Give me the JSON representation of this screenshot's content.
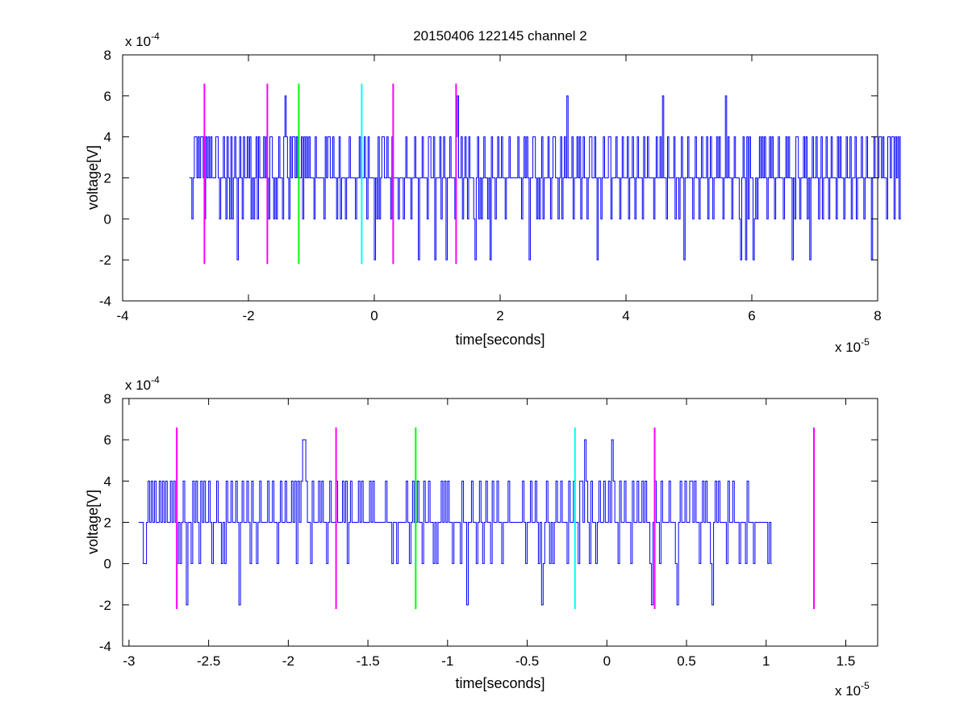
{
  "figure_title": "20150406 122145 channel 2",
  "colors": {
    "signal": "#0000ff",
    "magenta": "#ff00ff",
    "green": "#00ff00",
    "cyan": "#00ffff",
    "axis": "#000000"
  },
  "chart_data": [
    {
      "type": "line",
      "title": "20150406 122145 channel 2",
      "xlabel": "time[seconds]",
      "ylabel": "voltage[V]",
      "x_multiplier": "x 10",
      "x_exponent": "-5",
      "y_multiplier": "x 10",
      "y_exponent": "-4",
      "xlim": [
        -4,
        8
      ],
      "ylim": [
        -4,
        8
      ],
      "xticks": [
        -4,
        -2,
        0,
        2,
        4,
        6,
        8
      ],
      "xtick_labels": [
        "-4",
        "-2",
        "0",
        "2",
        "4",
        "6",
        "8"
      ],
      "yticks": [
        -4,
        -2,
        0,
        2,
        4,
        6,
        8
      ],
      "ytick_labels": [
        "-4",
        "-2",
        "0",
        "2",
        "4",
        "6",
        "8"
      ],
      "grid": false,
      "series": [
        {
          "color": "#0000ff",
          "x_start": -2.94,
          "x_step": 0.02,
          "values": [
            2,
            2,
            0,
            2,
            4,
            4,
            2,
            4,
            2,
            4,
            4,
            2,
            0,
            4,
            2,
            4,
            2,
            4,
            2,
            2,
            2,
            4,
            4,
            2,
            0,
            2,
            2,
            4,
            2,
            0,
            4,
            2,
            0,
            4,
            0,
            2,
            4,
            2,
            -2,
            2,
            4,
            2,
            0,
            4,
            2,
            2,
            4,
            2,
            4,
            0,
            2,
            0,
            2,
            4,
            0,
            4,
            2,
            2,
            2,
            4,
            2,
            4,
            2,
            0,
            4,
            4,
            2,
            0,
            2,
            0,
            2,
            4,
            2,
            2,
            0,
            4,
            6,
            4,
            2,
            0,
            4,
            2,
            4,
            4,
            2,
            4,
            2,
            2,
            2,
            4,
            0,
            4,
            2,
            4,
            2,
            4,
            2,
            2,
            2,
            0,
            4,
            2,
            2,
            2,
            2,
            2,
            2,
            0,
            4,
            2,
            4,
            4,
            2,
            2,
            4,
            2,
            2,
            0,
            2,
            4,
            0,
            2,
            2,
            2,
            0,
            2,
            2,
            4,
            2,
            2,
            2,
            2,
            0,
            2,
            2,
            4,
            2,
            2,
            2,
            4,
            2,
            0,
            4,
            2,
            2,
            2,
            2,
            -2,
            2,
            0,
            4,
            0,
            2,
            4,
            4,
            2,
            2,
            4,
            2,
            2,
            0,
            4,
            2,
            2,
            2,
            2,
            0,
            2,
            2,
            2,
            0,
            2,
            4,
            2,
            2,
            2,
            0,
            2,
            2,
            4,
            2,
            2,
            -2,
            2,
            2,
            4,
            2,
            2,
            2,
            0,
            4,
            4,
            2,
            2,
            4,
            -2,
            2,
            2,
            2,
            4,
            0,
            2,
            4,
            2,
            -2,
            2,
            2,
            4,
            2,
            2,
            2,
            0,
            4,
            6,
            2,
            2,
            4,
            0,
            2,
            4,
            2,
            0,
            4,
            2,
            2,
            2,
            0,
            -2,
            2,
            4,
            0,
            2,
            0,
            2,
            4,
            2,
            2,
            0,
            2,
            -2,
            4,
            2,
            2,
            0,
            2,
            4,
            2,
            2,
            4,
            2,
            2,
            0,
            2,
            2,
            4,
            2,
            2,
            2,
            2,
            2,
            2,
            4,
            2,
            2,
            0,
            2,
            4,
            2,
            4,
            2,
            -2,
            2,
            2,
            4,
            4,
            2,
            0,
            2,
            0,
            2,
            4,
            0,
            2,
            2,
            2,
            4,
            2,
            0,
            2,
            4,
            4,
            2,
            2,
            0,
            2,
            4,
            0,
            2,
            4,
            2,
            6,
            2,
            2,
            2,
            4,
            0,
            2,
            2,
            4,
            2,
            4,
            0,
            2,
            4,
            2,
            2,
            0,
            2,
            4,
            4,
            2,
            2,
            4,
            2,
            -2,
            2,
            2,
            0,
            2,
            4,
            2,
            2,
            2,
            4,
            4,
            0,
            2,
            2,
            2,
            4,
            2,
            2,
            0,
            2,
            4,
            2,
            2,
            2,
            4,
            0,
            2,
            2,
            4,
            2,
            0,
            2,
            4,
            2,
            2,
            2,
            0,
            4,
            2,
            2,
            4,
            2,
            2,
            2,
            2,
            0,
            2,
            4,
            2,
            2,
            4,
            2,
            6,
            2,
            2,
            0,
            4,
            2,
            2,
            2,
            2,
            4,
            0,
            2,
            2,
            0,
            2,
            4,
            2,
            -2,
            2,
            2,
            4,
            2,
            2,
            2,
            0,
            2,
            4,
            2,
            2,
            0,
            2,
            4,
            2,
            2,
            2,
            4,
            0,
            2,
            4,
            2,
            0,
            2,
            2,
            4,
            2,
            4,
            2,
            2,
            0,
            2,
            6,
            2,
            4,
            2,
            2,
            0,
            2,
            4,
            2,
            2,
            2,
            0,
            -2,
            2,
            4,
            2,
            -2,
            4,
            0,
            4,
            2,
            2,
            -2,
            0,
            2,
            0,
            2,
            4,
            2,
            4,
            2,
            4,
            2,
            0,
            2,
            4,
            2,
            4,
            2,
            0,
            2,
            2,
            4,
            2,
            2,
            2,
            0,
            2,
            4,
            2,
            4,
            2,
            2,
            -2,
            2,
            0,
            4,
            4,
            2,
            0,
            2,
            2,
            4,
            2,
            4,
            0,
            2,
            -2,
            2,
            4,
            2,
            2,
            4,
            2,
            0,
            2,
            4,
            0,
            2,
            2,
            4,
            2,
            0,
            2,
            4,
            2,
            2,
            2,
            0,
            4,
            2,
            4,
            2,
            2,
            0,
            2,
            4,
            2,
            2,
            4,
            0,
            2,
            2,
            4,
            0,
            2,
            2,
            2,
            4,
            2,
            0,
            2,
            4,
            2,
            2,
            2,
            -2,
            2,
            4,
            2,
            2,
            2,
            4,
            4,
            2,
            4,
            2,
            2,
            0,
            4,
            4,
            2,
            4,
            4,
            0,
            4,
            2,
            4,
            0,
            4
          ]
        }
      ],
      "markers": [
        {
          "x": -2.7,
          "color": "magenta",
          "y0": -2.2,
          "y1": 6.6
        },
        {
          "x": -1.7,
          "color": "magenta",
          "y0": -2.2,
          "y1": 6.6
        },
        {
          "x": -1.2,
          "color": "green",
          "y0": -2.2,
          "y1": 6.6
        },
        {
          "x": -0.2,
          "color": "cyan",
          "y0": -2.2,
          "y1": 6.6
        },
        {
          "x": 0.3,
          "color": "magenta",
          "y0": -2.2,
          "y1": 6.6
        },
        {
          "x": 1.3,
          "color": "magenta",
          "y0": -2.2,
          "y1": 6.6
        }
      ]
    },
    {
      "type": "line",
      "title": "",
      "xlabel": "time[seconds]",
      "ylabel": "voltage[V]",
      "x_multiplier": "x 10",
      "x_exponent": "-5",
      "y_multiplier": "x 10",
      "y_exponent": "-4",
      "xlim": [
        -3.04,
        1.7
      ],
      "ylim": [
        -4,
        8
      ],
      "xticks": [
        -3,
        -2.5,
        -2,
        -1.5,
        -1,
        -0.5,
        0,
        0.5,
        1,
        1.5
      ],
      "xtick_labels": [
        "-3",
        "-2.5",
        "-2",
        "-1.5",
        "-1",
        "-0.5",
        "0",
        "0.5",
        "1",
        "1.5"
      ],
      "yticks": [
        -4,
        -2,
        0,
        2,
        4,
        6,
        8
      ],
      "ytick_labels": [
        "-4",
        "-2",
        "0",
        "2",
        "4",
        "6",
        "8"
      ],
      "grid": false,
      "series": [
        {
          "color": "#0000ff",
          "x_start": -2.94,
          "x_step": 0.01,
          "values": [
            2,
            2,
            2,
            0,
            0,
            2,
            4,
            2,
            4,
            2,
            4,
            2,
            2,
            4,
            2,
            4,
            2,
            4,
            2,
            2,
            4,
            2,
            4,
            2,
            0,
            2,
            0,
            2,
            4,
            2,
            -2,
            2,
            2,
            0,
            4,
            2,
            4,
            2,
            0,
            4,
            2,
            4,
            2,
            2,
            4,
            2,
            0,
            2,
            2,
            4,
            2,
            2,
            0,
            2,
            0,
            4,
            2,
            2,
            4,
            2,
            2,
            4,
            2,
            -2,
            2,
            4,
            2,
            2,
            4,
            2,
            0,
            4,
            2,
            2,
            0,
            2,
            4,
            2,
            2,
            2,
            2,
            4,
            2,
            2,
            4,
            2,
            2,
            0,
            2,
            4,
            2,
            2,
            4,
            2,
            2,
            2,
            4,
            2,
            4,
            0,
            4,
            2,
            4,
            6,
            6,
            4,
            2,
            2,
            0,
            4,
            2,
            2,
            2,
            4,
            2,
            4,
            2,
            2,
            0,
            2,
            4,
            2,
            2,
            2,
            4,
            2,
            2,
            2,
            4,
            2,
            4,
            0,
            2,
            4,
            2,
            2,
            2,
            2,
            4,
            2,
            4,
            2,
            2,
            2,
            2,
            4,
            2,
            4,
            2,
            2,
            2,
            2,
            2,
            2,
            2,
            4,
            2,
            2,
            2,
            0,
            2,
            2,
            0,
            2,
            2,
            2,
            2,
            2,
            4,
            2,
            0,
            2,
            4,
            2,
            2,
            4,
            2,
            2,
            0,
            4,
            2,
            2,
            4,
            2,
            2,
            0,
            2,
            0,
            2,
            2,
            4,
            2,
            4,
            2,
            4,
            2,
            2,
            0,
            2,
            2,
            2,
            2,
            0,
            4,
            2,
            2,
            -2,
            2,
            2,
            4,
            2,
            2,
            0,
            2,
            4,
            2,
            0,
            2,
            4,
            2,
            2,
            0,
            4,
            2,
            2,
            4,
            2,
            2,
            0,
            2,
            2,
            2,
            4,
            2,
            2,
            2,
            2,
            2,
            2,
            2,
            2,
            4,
            2,
            0,
            2,
            2,
            4,
            2,
            2,
            4,
            2,
            0,
            2,
            -2,
            0,
            2,
            4,
            2,
            0,
            2,
            0,
            2,
            4,
            2,
            2,
            4,
            2,
            2,
            2,
            0,
            4,
            2,
            2,
            4,
            2,
            2,
            0,
            4,
            4,
            2,
            6,
            4,
            2,
            0,
            4,
            2,
            2,
            0,
            2,
            4,
            2,
            2,
            4,
            2,
            2,
            4,
            2,
            6,
            4,
            2,
            2,
            0,
            4,
            2,
            2,
            4,
            2,
            2,
            2,
            0,
            4,
            2,
            2,
            4,
            2,
            2,
            4,
            2,
            4,
            2,
            2,
            0,
            -2,
            2,
            4,
            2,
            2,
            0,
            4,
            2,
            2,
            2,
            2,
            4,
            2,
            2,
            2,
            0,
            -2,
            2,
            4,
            2,
            2,
            4,
            2,
            2,
            4,
            4,
            2,
            4,
            2,
            2,
            0,
            2,
            4,
            2,
            4,
            2,
            2,
            0,
            -2,
            2,
            4,
            2,
            4,
            2,
            2,
            2,
            2,
            0,
            4,
            2,
            2,
            4,
            2,
            2,
            2,
            0,
            2,
            2,
            2,
            0,
            4,
            2,
            2,
            2,
            0,
            2,
            2,
            2,
            2,
            2,
            2,
            2,
            2,
            0,
            2,
            0
          ]
        }
      ],
      "markers": [
        {
          "x": -2.7,
          "color": "magenta",
          "y0": -2.2,
          "y1": 6.6
        },
        {
          "x": -1.7,
          "color": "magenta",
          "y0": -2.2,
          "y1": 6.6
        },
        {
          "x": -1.2,
          "color": "green",
          "y0": -2.2,
          "y1": 6.6
        },
        {
          "x": -0.2,
          "color": "cyan",
          "y0": -2.2,
          "y1": 6.6
        },
        {
          "x": 0.3,
          "color": "magenta",
          "y0": -2.2,
          "y1": 6.6
        },
        {
          "x": 1.3,
          "color": "magenta",
          "y0": -2.2,
          "y1": 6.6
        }
      ]
    }
  ]
}
